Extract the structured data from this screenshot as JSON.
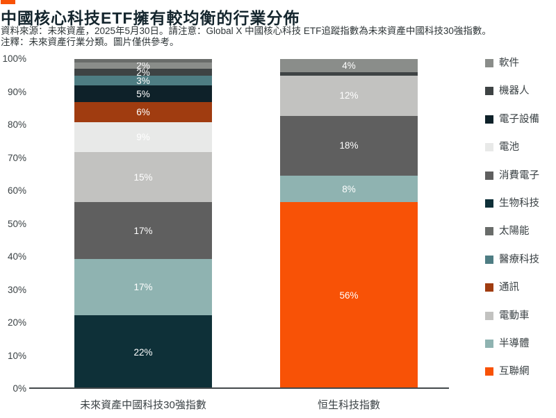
{
  "accent_color": "#F85206",
  "header": {
    "title": "中國核心科技ETF擁有較均衡的行業分佈",
    "note_line1": "資料來源：未來資產，2025年5月30日。請注意：Global X 中國核心科技 ETF追蹤指數為未來資產中國科技30強指數。",
    "note_line2": "注釋：未來資產行業分類。圖片僅供參考。"
  },
  "chart_data": {
    "type": "bar",
    "subtype": "stacked-100-percent",
    "title": "中國核心科技ETF擁有較均衡的行業分佈",
    "ylim": [
      0,
      100
    ],
    "yticks": [
      "100%",
      "90%",
      "80%",
      "70%",
      "60%",
      "50%",
      "40%",
      "30%",
      "20%",
      "10%",
      "0%"
    ],
    "grid": false,
    "legend_position": "right",
    "colors": {
      "軟件": "#8A8D8A",
      "機器人": "#3E4344",
      "電子設備": "#0E2129",
      "電池": "#E8E9E8",
      "消費電子": "#5F5F5F",
      "生物科技": "#0E3038",
      "太陽能": "#696C6A",
      "醫療科技": "#4E7D83",
      "通訊": "#A03C10",
      "電動車": "#C2C2C0",
      "半導體": "#8FB3B1",
      "互聯網": "#F85206"
    },
    "legend_order": [
      "軟件",
      "機器人",
      "電子設備",
      "電池",
      "消費電子",
      "生物科技",
      "太陽能",
      "醫療科技",
      "通訊",
      "電動車",
      "半導體",
      "互聯網"
    ],
    "bars": [
      {
        "label": "未來資產中國科技30強指數",
        "segments_bottom_to_top": [
          {
            "category": "生物科技",
            "value": 22,
            "label": "22%"
          },
          {
            "category": "半導體",
            "value": 17,
            "label": "17%"
          },
          {
            "category": "消費電子",
            "value": 17,
            "label": "17%"
          },
          {
            "category": "電動車",
            "value": 15,
            "label": "15%"
          },
          {
            "category": "電池",
            "value": 9,
            "label": "9%"
          },
          {
            "category": "通訊",
            "value": 6,
            "label": "6%"
          },
          {
            "category": "電子設備",
            "value": 5,
            "label": "5%"
          },
          {
            "category": "醫療科技",
            "value": 3,
            "label": "3%"
          },
          {
            "category": "機器人",
            "value": 2,
            "label": "2%"
          },
          {
            "category": "軟件",
            "value": 2,
            "label": "2%"
          },
          {
            "category": "太陽能",
            "value": 1,
            "label": ""
          }
        ]
      },
      {
        "label": "恒生科技指數",
        "segments_bottom_to_top": [
          {
            "category": "互聯網",
            "value": 56,
            "label": "56%"
          },
          {
            "category": "半導體",
            "value": 8,
            "label": "8%"
          },
          {
            "category": "消費電子",
            "value": 18,
            "label": "18%"
          },
          {
            "category": "電動車",
            "value": 12,
            "label": "12%"
          },
          {
            "category": "機器人",
            "value": 1,
            "label": ""
          },
          {
            "category": "軟件",
            "value": 4,
            "label": "4%"
          }
        ]
      }
    ]
  }
}
